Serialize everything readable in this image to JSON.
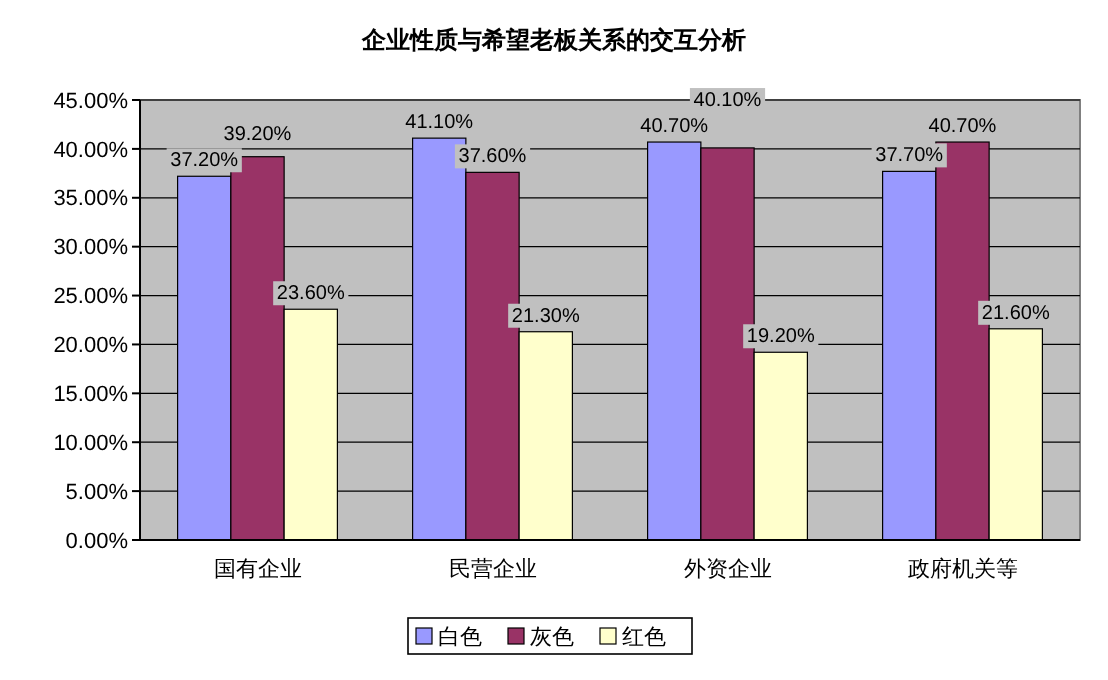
{
  "chart_data": {
    "type": "bar",
    "title": "企业性质与希望老板关系的交互分析",
    "categories": [
      "国有企业",
      "民营企业",
      "外资企业",
      "政府机关等"
    ],
    "series": [
      {
        "name": "白色",
        "color": "#9999ff",
        "values": [
          37.2,
          41.1,
          40.7,
          37.7
        ],
        "value_labels": [
          "37.20%",
          "41.10%",
          "40.70%",
          "37.70%"
        ]
      },
      {
        "name": "灰色",
        "color": "#993366",
        "values": [
          39.2,
          37.6,
          40.1,
          40.7
        ],
        "value_labels": [
          "39.20%",
          "37.60%",
          "40.10%",
          "40.70%"
        ]
      },
      {
        "name": "红色",
        "color": "#ffffcc",
        "values": [
          23.6,
          21.3,
          19.2,
          21.6
        ],
        "value_labels": [
          "23.60%",
          "21.30%",
          "19.20%",
          "21.60%"
        ]
      }
    ],
    "ylim": [
      0,
      45
    ],
    "yticks": [
      {
        "value": 0,
        "label": "0.00%"
      },
      {
        "value": 5,
        "label": "5.00%"
      },
      {
        "value": 10,
        "label": "10.00%"
      },
      {
        "value": 15,
        "label": "15.00%"
      },
      {
        "value": 20,
        "label": "20.00%"
      },
      {
        "value": 25,
        "label": "25.00%"
      },
      {
        "value": 30,
        "label": "30.00%"
      },
      {
        "value": 35,
        "label": "35.00%"
      },
      {
        "value": 40,
        "label": "40.00%"
      },
      {
        "value": 45,
        "label": "45.00%"
      }
    ],
    "grid": "y",
    "legend": "bottom"
  }
}
